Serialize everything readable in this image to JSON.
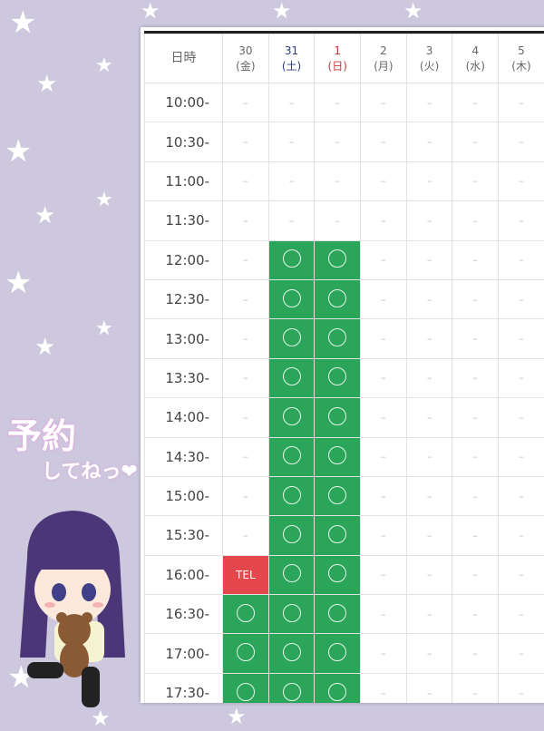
{
  "promo": {
    "line1": "予約",
    "line2": "してねっ❤"
  },
  "schedule": {
    "corner_label": "日時",
    "days": [
      {
        "date": "30",
        "weekday": "(金)",
        "type": "weekday"
      },
      {
        "date": "31",
        "weekday": "(土)",
        "type": "sat"
      },
      {
        "date": "1",
        "weekday": "(日)",
        "type": "sun"
      },
      {
        "date": "2",
        "weekday": "(月)",
        "type": "weekday"
      },
      {
        "date": "3",
        "weekday": "(火)",
        "type": "weekday"
      },
      {
        "date": "4",
        "weekday": "(水)",
        "type": "weekday"
      },
      {
        "date": "5",
        "weekday": "(木)",
        "type": "weekday"
      }
    ],
    "legend": {
      "available": "○",
      "unavailable": "–",
      "phone": "TEL"
    },
    "rows": [
      {
        "time": "10:00-",
        "slots": [
          "-",
          "-",
          "-",
          "-",
          "-",
          "-",
          "-"
        ]
      },
      {
        "time": "10:30-",
        "slots": [
          "-",
          "-",
          "-",
          "-",
          "-",
          "-",
          "-"
        ]
      },
      {
        "time": "11:00-",
        "slots": [
          "-",
          "-",
          "-",
          "-",
          "-",
          "-",
          "-"
        ]
      },
      {
        "time": "11:30-",
        "slots": [
          "-",
          "-",
          "-",
          "-",
          "-",
          "-",
          "-"
        ]
      },
      {
        "time": "12:00-",
        "slots": [
          "-",
          "o",
          "o",
          "-",
          "-",
          "-",
          "-"
        ]
      },
      {
        "time": "12:30-",
        "slots": [
          "-",
          "o",
          "o",
          "-",
          "-",
          "-",
          "-"
        ]
      },
      {
        "time": "13:00-",
        "slots": [
          "-",
          "o",
          "o",
          "-",
          "-",
          "-",
          "-"
        ]
      },
      {
        "time": "13:30-",
        "slots": [
          "-",
          "o",
          "o",
          "-",
          "-",
          "-",
          "-"
        ]
      },
      {
        "time": "14:00-",
        "slots": [
          "-",
          "o",
          "o",
          "-",
          "-",
          "-",
          "-"
        ]
      },
      {
        "time": "14:30-",
        "slots": [
          "-",
          "o",
          "o",
          "-",
          "-",
          "-",
          "-"
        ]
      },
      {
        "time": "15:00-",
        "slots": [
          "-",
          "o",
          "o",
          "-",
          "-",
          "-",
          "-"
        ]
      },
      {
        "time": "15:30-",
        "slots": [
          "-",
          "o",
          "o",
          "-",
          "-",
          "-",
          "-"
        ]
      },
      {
        "time": "16:00-",
        "slots": [
          "TEL",
          "o",
          "o",
          "-",
          "-",
          "-",
          "-"
        ]
      },
      {
        "time": "16:30-",
        "slots": [
          "o",
          "o",
          "o",
          "-",
          "-",
          "-",
          "-"
        ]
      },
      {
        "time": "17:00-",
        "slots": [
          "o",
          "o",
          "o",
          "-",
          "-",
          "-",
          "-"
        ]
      },
      {
        "time": "17:30-",
        "slots": [
          "o",
          "o",
          "o",
          "-",
          "-",
          "-",
          "-"
        ]
      }
    ]
  },
  "colors": {
    "background": "#cdc8de",
    "available": "#2aa55a",
    "phone": "#e4474c",
    "saturday": "#2c3a7a",
    "sunday": "#c0393b"
  }
}
